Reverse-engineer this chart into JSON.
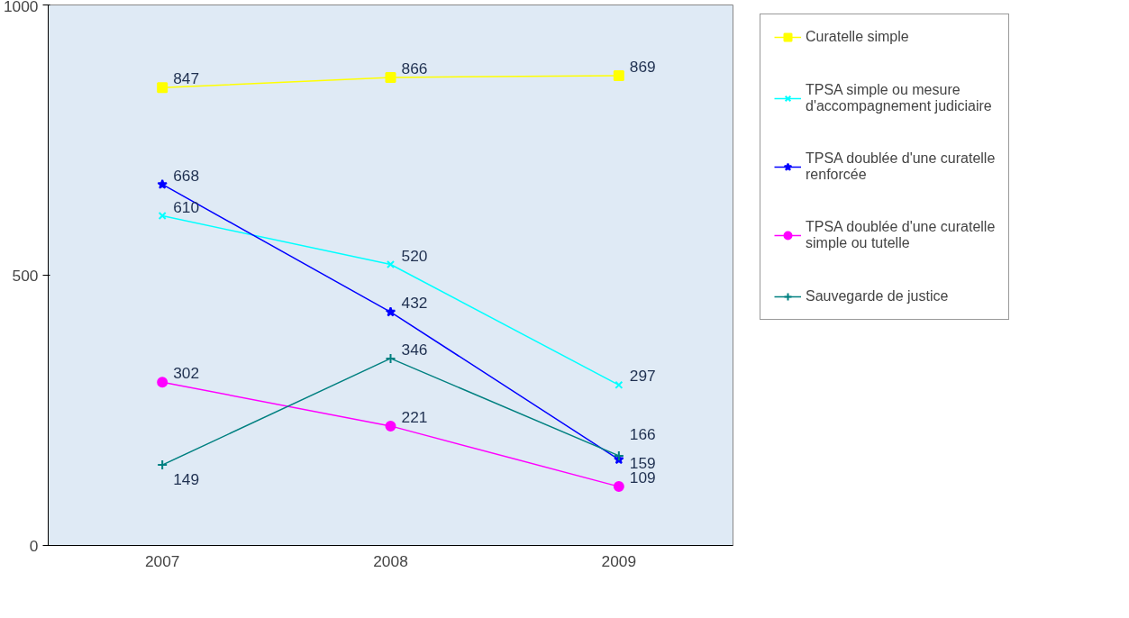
{
  "chart_data": {
    "type": "line",
    "categories": [
      "2007",
      "2008",
      "2009"
    ],
    "ylim": [
      0,
      1000
    ],
    "yticks": [
      0,
      500,
      1000
    ],
    "grid": false,
    "legend": "right",
    "data_labels": true,
    "series": [
      {
        "name": "Curatelle simple",
        "color": "#ffff00",
        "marker": "square",
        "values": [
          847,
          866,
          869
        ]
      },
      {
        "name": "TPSA simple ou mesure d'accompagnement judiciaire",
        "color": "#00ffff",
        "marker": "x",
        "values": [
          610,
          520,
          297
        ]
      },
      {
        "name": "TPSA doublée d'une curatelle renforcée",
        "color": "#0000ff",
        "marker": "star",
        "values": [
          668,
          432,
          159
        ]
      },
      {
        "name": "TPSA doublée d'une curatelle simple ou tutelle",
        "color": "#ff00ff",
        "marker": "circle",
        "values": [
          302,
          221,
          109
        ]
      },
      {
        "name": "Sauvegarde de justice",
        "color": "#008080",
        "marker": "cross",
        "values": [
          149,
          346,
          166
        ]
      }
    ]
  }
}
